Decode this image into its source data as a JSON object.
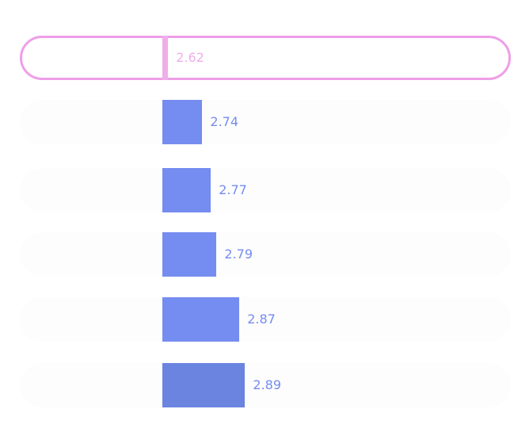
{
  "colors": {
    "bar": "#758cf0",
    "bar_last": "#6b84e0",
    "highlight": "#efaeea",
    "highlight_border": "#ef9ee8",
    "label": "#758cf0",
    "label_highlight": "#efaeea"
  },
  "chart_data": {
    "type": "bar",
    "orientation": "horizontal",
    "categories": [
      "",
      "",
      "",
      "",
      "",
      ""
    ],
    "values": [
      2.62,
      2.74,
      2.77,
      2.79,
      2.87,
      2.89
    ],
    "value_labels": [
      "2.62",
      "2.74",
      "2.77",
      "2.79",
      "2.87",
      "2.89"
    ],
    "highlighted_index": 0,
    "xlim": [
      2.6,
      2.9
    ],
    "title": "",
    "xlabel": "",
    "ylabel": "",
    "grid": false,
    "legend": "none"
  }
}
